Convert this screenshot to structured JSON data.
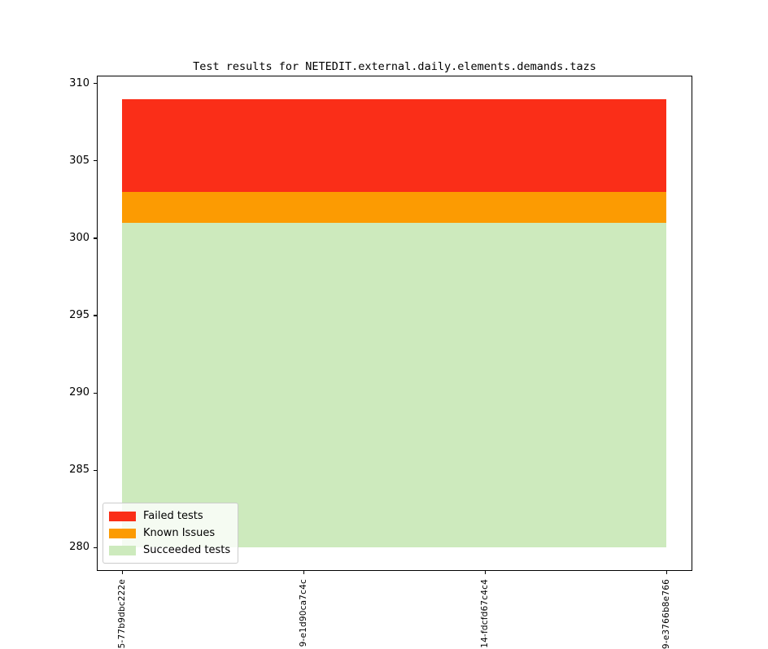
{
  "chart_data": {
    "type": "area",
    "title": "Test results for NETEDIT.external.daily.elements.demands.tazs",
    "x": [
      0,
      1,
      2,
      3
    ],
    "x_tick_labels": [
      "5-77b9dbc222e",
      "9-e1d90ca7c4c",
      "14-fdcfd67c4c4",
      "9-e3766b8e766"
    ],
    "x_tick_label_rotation": 90,
    "x_tick_labels_note": "rotated labels are truncated by the bottom edge of the image",
    "xlabel": "",
    "ylabel": "",
    "y_ticks": [
      280,
      285,
      290,
      295,
      300,
      305,
      310
    ],
    "ylim": [
      278.55,
      310.45
    ],
    "stack_baseline": 280,
    "series": [
      {
        "name": "Succeeded tests",
        "color": "#cdeabd",
        "values": [
          301,
          301,
          301,
          301
        ],
        "band": [
          280,
          301
        ]
      },
      {
        "name": "Known Issues",
        "color": "#fc9b02",
        "values": [
          2,
          2,
          2,
          2
        ],
        "band": [
          301,
          303
        ]
      },
      {
        "name": "Failed tests",
        "color": "#fa2e18",
        "values": [
          6,
          6,
          6,
          6
        ],
        "band": [
          303,
          309
        ]
      }
    ],
    "legend": {
      "position": "lower-left",
      "entries": [
        {
          "label": "Failed tests",
          "color": "#fa2e18"
        },
        {
          "label": "Known Issues",
          "color": "#fc9b02"
        },
        {
          "label": "Succeeded tests",
          "color": "#cdeabd"
        }
      ]
    },
    "grid": false,
    "frame_color": "#000000",
    "background": "#ffffff"
  }
}
